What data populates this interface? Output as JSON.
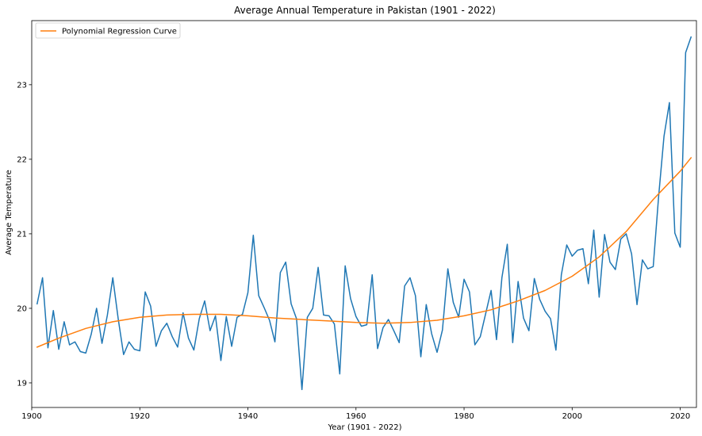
{
  "chart_data": {
    "type": "line",
    "title": "Average Annual Temperature in Pakistan (1901 - 2022)",
    "xlabel": "Year (1901 - 2022)",
    "ylabel": "Average Temperature",
    "xlim": [
      1900,
      2023
    ],
    "ylim": [
      18.67,
      23.86
    ],
    "x_ticks": [
      1900,
      1920,
      1940,
      1960,
      1980,
      2000,
      2020
    ],
    "y_ticks": [
      19,
      20,
      21,
      22,
      23
    ],
    "grid": false,
    "legend_position": "top-left",
    "series": [
      {
        "color": "#1f77b4",
        "x": [
          1901,
          1902,
          1903,
          1904,
          1905,
          1906,
          1907,
          1908,
          1909,
          1910,
          1911,
          1912,
          1913,
          1914,
          1915,
          1916,
          1917,
          1918,
          1919,
          1920,
          1921,
          1922,
          1923,
          1924,
          1925,
          1926,
          1927,
          1928,
          1929,
          1930,
          1931,
          1932,
          1933,
          1934,
          1935,
          1936,
          1937,
          1938,
          1939,
          1940,
          1941,
          1942,
          1943,
          1944,
          1945,
          1946,
          1947,
          1948,
          1949,
          1950,
          1951,
          1952,
          1953,
          1954,
          1955,
          1956,
          1957,
          1958,
          1959,
          1960,
          1961,
          1962,
          1963,
          1964,
          1965,
          1966,
          1967,
          1968,
          1969,
          1970,
          1971,
          1972,
          1973,
          1974,
          1975,
          1976,
          1977,
          1978,
          1979,
          1980,
          1981,
          1982,
          1983,
          1984,
          1985,
          1986,
          1987,
          1988,
          1989,
          1990,
          1991,
          1992,
          1993,
          1994,
          1995,
          1996,
          1997,
          1998,
          1999,
          2000,
          2001,
          2002,
          2003,
          2004,
          2005,
          2006,
          2007,
          2008,
          2009,
          2010,
          2011,
          2012,
          2013,
          2014,
          2015,
          2016,
          2017,
          2018,
          2019,
          2020,
          2021,
          2022
        ],
        "values": [
          20.06,
          20.41,
          19.47,
          19.97,
          19.45,
          19.82,
          19.51,
          19.55,
          19.42,
          19.4,
          19.65,
          20.0,
          19.53,
          19.91,
          20.41,
          19.86,
          19.38,
          19.55,
          19.45,
          19.43,
          20.22,
          20.03,
          19.49,
          19.7,
          19.8,
          19.62,
          19.48,
          19.94,
          19.6,
          19.44,
          19.86,
          20.1,
          19.7,
          19.9,
          19.3,
          19.89,
          19.49,
          19.88,
          19.92,
          20.21,
          20.98,
          20.17,
          20.01,
          19.84,
          19.55,
          20.48,
          20.62,
          20.06,
          19.86,
          18.91,
          19.88,
          20.0,
          20.55,
          19.91,
          19.9,
          19.79,
          19.12,
          20.57,
          20.13,
          19.89,
          19.76,
          19.78,
          20.45,
          19.46,
          19.74,
          19.85,
          19.7,
          19.54,
          20.3,
          20.41,
          20.17,
          19.35,
          20.05,
          19.66,
          19.41,
          19.71,
          20.53,
          20.08,
          19.88,
          20.39,
          20.22,
          19.51,
          19.62,
          19.93,
          20.24,
          19.58,
          20.41,
          20.86,
          19.54,
          20.36,
          19.87,
          19.7,
          20.4,
          20.12,
          19.96,
          19.86,
          19.44,
          20.45,
          20.85,
          20.7,
          20.78,
          20.8,
          20.33,
          21.05,
          20.15,
          20.99,
          20.62,
          20.52,
          20.93,
          21.0,
          20.73,
          20.05,
          20.65,
          20.53,
          20.56,
          21.5,
          22.31,
          22.76,
          21.01,
          20.82,
          23.43,
          23.64
        ]
      },
      {
        "name": "Polynomial Regression Curve",
        "color": "#ff7f0e",
        "x": [
          1901,
          1905,
          1910,
          1915,
          1920,
          1925,
          1930,
          1935,
          1940,
          1945,
          1950,
          1955,
          1960,
          1965,
          1970,
          1975,
          1980,
          1985,
          1990,
          1995,
          2000,
          2005,
          2010,
          2015,
          2020,
          2022
        ],
        "values": [
          19.48,
          19.6,
          19.73,
          19.82,
          19.88,
          19.91,
          19.92,
          19.92,
          19.9,
          19.87,
          19.85,
          19.83,
          19.81,
          19.8,
          19.81,
          19.84,
          19.9,
          19.98,
          20.1,
          20.24,
          20.43,
          20.69,
          21.03,
          21.46,
          21.84,
          22.02
        ]
      }
    ]
  }
}
